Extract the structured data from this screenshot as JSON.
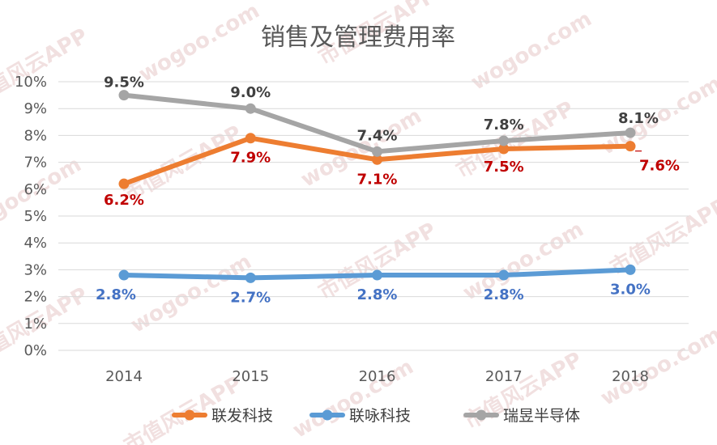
{
  "chart_data": {
    "type": "line",
    "title": "销售及管理费用率",
    "categories": [
      "2014",
      "2015",
      "2016",
      "2017",
      "2018"
    ],
    "y_ticks": [
      "0%",
      "1%",
      "2%",
      "3%",
      "4%",
      "5%",
      "6%",
      "7%",
      "8%",
      "9%",
      "10%"
    ],
    "ylim": [
      0,
      10
    ],
    "grid": true,
    "legend_position": "bottom",
    "series": [
      {
        "name": "联发科技",
        "color": "#ED7D31",
        "label_color": "#C00000",
        "values": [
          6.2,
          7.9,
          7.1,
          7.5,
          7.6
        ],
        "labels": [
          "6.2%",
          "7.9%",
          "7.1%",
          "7.5%",
          "7.6%"
        ]
      },
      {
        "name": "联咏科技",
        "color": "#5B9BD5",
        "label_color": "#4472C4",
        "values": [
          2.8,
          2.7,
          2.8,
          2.8,
          3.0
        ],
        "labels": [
          "2.8%",
          "2.7%",
          "2.8%",
          "2.8%",
          "3.0%"
        ]
      },
      {
        "name": "瑞昱半导体",
        "color": "#A5A5A5",
        "label_color": "#404040",
        "values": [
          9.5,
          9.0,
          7.4,
          7.8,
          8.1
        ],
        "labels": [
          "9.5%",
          "9.0%",
          "7.4%",
          "7.8%",
          "8.1%"
        ]
      }
    ],
    "watermark": [
      "市值风云APP",
      "wogoo.com"
    ]
  }
}
